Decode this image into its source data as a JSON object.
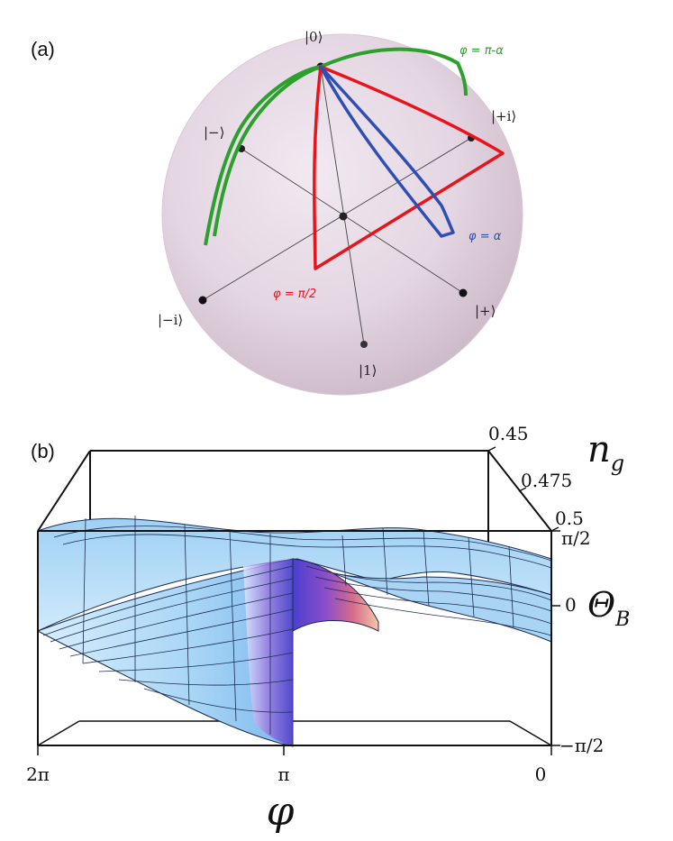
{
  "panel_a": {
    "label": "(a)",
    "states": {
      "zero": "|0⟩",
      "one": "|1⟩",
      "plus": "|+⟩",
      "minus": "|−⟩",
      "plus_i": "|+i⟩",
      "minus_i": "|−i⟩"
    },
    "curves": [
      {
        "label": "φ = π-α",
        "color": "#2ca02c"
      },
      {
        "label": "φ = π/2",
        "color": "#e8141c"
      },
      {
        "label": "φ = α",
        "color": "#2d4fb5"
      }
    ]
  },
  "panel_b": {
    "label": "(b)",
    "x_axis": {
      "title": "φ",
      "ticks": [
        "2π",
        "π",
        "0"
      ]
    },
    "depth_axis": {
      "title": "n",
      "title_sub": "g",
      "ticks": [
        "0.45",
        "0.475",
        "0.5"
      ]
    },
    "z_axis": {
      "title": "Θ",
      "title_sub": "B",
      "ticks": [
        "π/2",
        "0",
        "−π/2"
      ]
    }
  }
}
